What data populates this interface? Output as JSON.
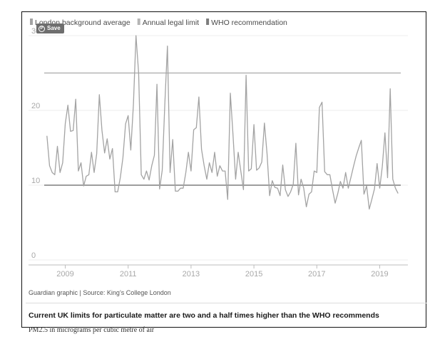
{
  "pin": {
    "icon": "pinterest-icon",
    "label": "Save"
  },
  "source": "Guardian graphic | Source: King’s College London",
  "headline": "Current UK limits for particulate matter are two and a half times higher than the WHO recommends",
  "subtitle": "PM2.5 in micrograms per cubic metre of air",
  "colors": {
    "series": "#a3a3a3",
    "legal_limit": "#b5b5b5",
    "who": "#7d7d7d",
    "grid": "#ececec",
    "tick_text": "#a8a8a8",
    "frame": "#111111"
  },
  "chart_data": {
    "type": "line",
    "legend": [
      {
        "label": "London background average",
        "swatch_color": "#a3a3a3"
      },
      {
        "label": "Annual legal limit",
        "swatch_color": "#b5b5b5"
      },
      {
        "label": "WHO recommendation",
        "swatch_color": "#7d7d7d"
      }
    ],
    "legend_position": "top-left",
    "grid": true,
    "xlim": [
      2008.33,
      2019.67
    ],
    "ylim": [
      0,
      30
    ],
    "x_ticks": [
      2009,
      2011,
      2013,
      2015,
      2017,
      2019
    ],
    "x_tick_labels": [
      "2009",
      "2011",
      "2013",
      "2015",
      "2017",
      "2019"
    ],
    "y_ticks": [
      0,
      10,
      20,
      30
    ],
    "y_tick_labels": [
      "0",
      "10",
      "20",
      "30"
    ],
    "reference_lines": [
      {
        "name": "Annual legal limit",
        "value": 25
      },
      {
        "name": "WHO recommendation",
        "value": 10
      }
    ],
    "series": [
      {
        "name": "London background average",
        "x_start": "2008-06",
        "x_step": "month",
        "values": [
          16.6,
          12.6,
          11.7,
          11.4,
          15.2,
          11.7,
          13.0,
          18.2,
          20.7,
          17.2,
          17.3,
          21.5,
          11.9,
          13.0,
          9.9,
          11.2,
          11.4,
          14.4,
          11.7,
          14.2,
          22.1,
          17.3,
          14.3,
          16.2,
          13.5,
          14.9,
          9.1,
          9.1,
          11.0,
          13.7,
          18.2,
          19.3,
          14.7,
          20.8,
          30.0,
          25.0,
          11.4,
          10.8,
          11.9,
          10.7,
          12.6,
          14.0,
          23.5,
          9.5,
          12.0,
          21.0,
          28.6,
          11.7,
          16.1,
          9.2,
          9.2,
          9.6,
          9.6,
          11.7,
          14.4,
          11.9,
          17.4,
          17.7,
          21.8,
          14.8,
          12.6,
          10.8,
          13.0,
          11.7,
          14.4,
          11.2,
          12.6,
          11.9,
          11.9,
          8.1,
          22.3,
          16.8,
          10.8,
          14.4,
          11.9,
          9.4,
          24.7,
          11.9,
          12.2,
          18.1,
          12.0,
          12.3,
          13.1,
          18.3,
          14.2,
          8.6,
          10.6,
          9.7,
          9.6,
          8.6,
          12.7,
          9.4,
          8.5,
          9.1,
          10.1,
          15.6,
          8.7,
          10.8,
          9.6,
          7.1,
          8.8,
          9.1,
          11.9,
          11.7,
          20.4,
          21.1,
          11.8,
          11.4,
          11.4,
          9.4,
          7.6,
          8.9,
          10.5,
          9.6,
          11.7,
          9.6,
          11.0,
          12.5,
          13.9,
          15.0,
          16.0,
          8.8,
          9.9,
          6.8,
          8.1,
          9.5,
          12.9,
          9.6,
          12.5,
          17.0,
          11.0,
          22.9,
          10.8,
          9.6,
          8.9
        ]
      }
    ]
  }
}
